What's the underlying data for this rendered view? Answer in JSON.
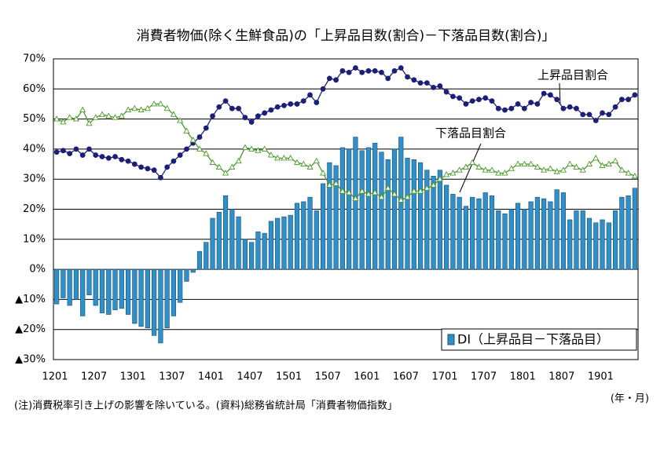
{
  "chart_data": {
    "type": "bar_line",
    "title": "消費者物価(除く生鮮食品)の「上昇品目数(割合)－下落品目数(割合)」",
    "note": "(注)消費税率引き上げの影響を除いている。(資料)総務省統計局「消費者物価指数」",
    "x_label": "(年・月)",
    "categories": [
      "1201",
      null,
      null,
      null,
      null,
      null,
      "1207",
      null,
      null,
      null,
      null,
      null,
      "1301",
      null,
      null,
      null,
      null,
      null,
      "1307",
      null,
      null,
      null,
      null,
      null,
      "1401",
      null,
      null,
      null,
      null,
      null,
      "1407",
      null,
      null,
      null,
      null,
      null,
      "1501",
      null,
      null,
      null,
      null,
      null,
      "1507",
      null,
      null,
      null,
      null,
      null,
      "1601",
      null,
      null,
      null,
      null,
      null,
      "1607",
      null,
      null,
      null,
      null,
      null,
      "1701",
      null,
      null,
      null,
      null,
      null,
      "1707",
      null,
      null,
      null,
      null,
      null,
      "1801",
      null,
      null,
      null,
      null,
      null,
      "1807",
      null,
      null,
      null,
      null,
      null,
      "1901",
      null,
      null,
      null,
      null,
      null
    ],
    "series": [
      {
        "name": "DI（上昇品目－下落品目）",
        "type": "bar",
        "color": "#2f8fc8",
        "values": [
          -11.5,
          -9.5,
          -12,
          -10,
          -15.5,
          -8.5,
          -12,
          -14.5,
          -15,
          -13.5,
          -13,
          -15,
          -18,
          -19,
          -19.5,
          -22,
          -24.5,
          -19.5,
          -15.5,
          -11,
          -4,
          -1,
          6,
          9,
          17,
          19,
          24.5,
          20,
          17.5,
          10,
          9,
          12.5,
          12,
          16,
          17,
          17.5,
          18,
          22,
          22.5,
          24,
          19.5,
          28.5,
          35.5,
          34.5,
          40.5,
          40,
          44,
          39.5,
          40.5,
          42,
          39,
          36.5,
          40,
          44,
          37,
          36.5,
          35.5,
          33,
          31,
          33,
          28,
          25,
          24,
          21,
          24,
          23.5,
          25.5,
          24.5,
          19.5,
          18.5,
          20,
          22,
          20,
          22.5,
          24,
          23.5,
          22.5,
          26.5,
          25.5,
          16.5,
          19.5,
          19.5,
          17,
          15.5,
          16.5,
          15.5,
          19.5,
          24,
          24.5,
          27
        ]
      },
      {
        "name": "上昇品目割合",
        "type": "line",
        "color": "#1c1f78",
        "marker": "circle",
        "values": [
          39,
          39.5,
          38.5,
          40,
          38,
          40,
          38,
          37.5,
          37,
          37.5,
          36.5,
          36,
          35,
          34,
          33.5,
          33,
          30.5,
          34,
          36,
          38,
          40,
          42,
          44,
          47,
          51,
          54,
          56,
          53.5,
          53.5,
          50.5,
          49,
          51,
          52,
          53,
          54,
          54.5,
          55,
          55,
          56,
          58,
          55.5,
          60,
          63.5,
          63,
          66,
          65.5,
          67,
          65.5,
          66,
          66,
          65.5,
          63.5,
          66,
          67,
          64,
          63,
          62,
          62,
          60.5,
          61,
          59,
          57.5,
          57,
          55,
          56,
          56.5,
          57,
          56,
          53.5,
          53,
          53.5,
          55,
          53.5,
          55.5,
          55,
          58.5,
          58,
          56.5,
          53.5,
          54,
          53.5,
          51.5,
          51.5,
          49.5,
          52,
          51.5,
          54,
          56.5,
          56.5,
          58
        ]
      },
      {
        "name": "下落品目割合",
        "type": "line",
        "color": "#4a9a2a",
        "marker": "triangle",
        "values": [
          50,
          49,
          50.5,
          50,
          53,
          48.5,
          50.5,
          51.5,
          51,
          50.5,
          51,
          53,
          53.5,
          53,
          53.5,
          55,
          55,
          53.5,
          51.5,
          49.5,
          46,
          43,
          40,
          38.5,
          35.5,
          34,
          32,
          34,
          36,
          40.5,
          40,
          39.5,
          40,
          38,
          37,
          37,
          37,
          35.5,
          35,
          34,
          36,
          32,
          28,
          28.5,
          26,
          25.5,
          23.5,
          26,
          25,
          25.5,
          24,
          27,
          25,
          23,
          24,
          26,
          26,
          27,
          28,
          30,
          31.5,
          32,
          33,
          34,
          35.5,
          34,
          33,
          33,
          32,
          32,
          33.5,
          35,
          35,
          35,
          34,
          33,
          33.5,
          32.5,
          33,
          35,
          34,
          33,
          35,
          37,
          34.5,
          35,
          36,
          33,
          32,
          31
        ]
      }
    ],
    "ylim": [
      -30,
      70
    ],
    "yticks": [
      {
        "value": -30,
        "label": "▲30%"
      },
      {
        "value": -20,
        "label": "▲20%"
      },
      {
        "value": -10,
        "label": "▲10%"
      },
      {
        "value": 0,
        "label": "0%"
      },
      {
        "value": 10,
        "label": "10%"
      },
      {
        "value": 20,
        "label": "20%"
      },
      {
        "value": 30,
        "label": "30%"
      },
      {
        "value": 40,
        "label": "40%"
      },
      {
        "value": 50,
        "label": "50%"
      },
      {
        "value": 60,
        "label": "60%"
      },
      {
        "value": 70,
        "label": "70%"
      }
    ],
    "grid": true
  }
}
